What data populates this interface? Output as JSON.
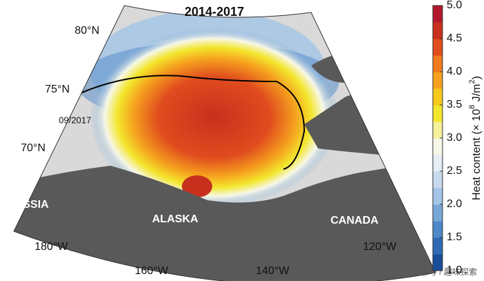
{
  "map": {
    "title": "2014-2017",
    "latitude_labels": [
      "80°N",
      "75°N",
      "70°N"
    ],
    "longitude_labels": [
      "180°W",
      "160°W",
      "140°W",
      "120°W"
    ],
    "regions": [
      "RUSSIA",
      "ALASKA",
      "CANADA"
    ],
    "contour_label": "09/2017",
    "colorbar": {
      "label_parts": [
        "Heat content (× 10",
        "8",
        " J/m",
        "2",
        ")"
      ],
      "lim": [
        1,
        5
      ],
      "ticks": [
        {
          "value": 1,
          "label": "1.0"
        },
        {
          "value": 1.5,
          "label": "1.5"
        },
        {
          "value": 2,
          "label": "2.0"
        },
        {
          "value": 2.5,
          "label": "2.5"
        },
        {
          "value": 3,
          "label": "3.0"
        },
        {
          "value": 3.5,
          "label": "3.5"
        },
        {
          "value": 4,
          "label": "4.0"
        },
        {
          "value": 4.5,
          "label": "4.5"
        },
        {
          "value": 5,
          "label": "5.0"
        }
      ],
      "colors": [
        "#1a4e9a",
        "#2e6ab4",
        "#4d88c8",
        "#78a8d8",
        "#a3c4e6",
        "#c8daee",
        "#e6eef6",
        "#f7f7e8",
        "#f5f09a",
        "#f3e62c",
        "#f7c81e",
        "#f5a01e",
        "#ef7a1e",
        "#e04c1e",
        "#c8301e",
        "#b2182b"
      ]
    },
    "watermark": "头条号 / 趣味探索"
  }
}
